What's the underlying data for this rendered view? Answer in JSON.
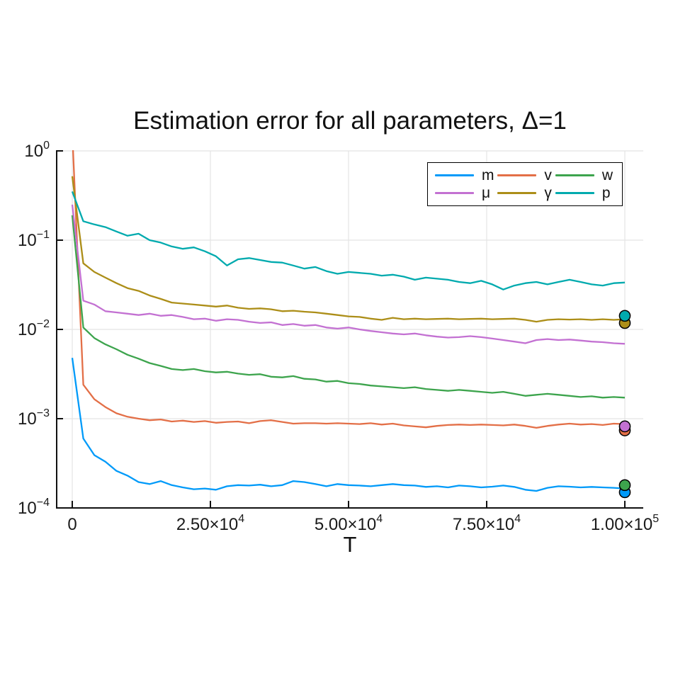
{
  "figure": {
    "background": "#ffffff",
    "grid_color": "#e4e4e4",
    "axis_color": "#111111",
    "tick_label_color": "#1a1a1a"
  },
  "chart_data": {
    "type": "line",
    "title": "Estimation error for all parameters, Δ=1",
    "xlabel": "T",
    "ylabel": "",
    "grid": true,
    "legend_position": "top-right",
    "x_axis": {
      "min": 0,
      "max": 100000,
      "ticks": [
        {
          "value": 0,
          "label": "0"
        },
        {
          "value": 25000,
          "mantissa": "2.50",
          "exp": "4"
        },
        {
          "value": 50000,
          "mantissa": "5.00",
          "exp": "4"
        },
        {
          "value": 75000,
          "mantissa": "7.50",
          "exp": "4"
        },
        {
          "value": 100000,
          "mantissa": "1.00",
          "exp": "5"
        }
      ]
    },
    "y_axis": {
      "scale": "log",
      "min": 0.0001,
      "max": 1,
      "ticks": [
        {
          "value": 1,
          "exp": "0"
        },
        {
          "value": 0.1,
          "exp": "−1"
        },
        {
          "value": 0.01,
          "exp": "−2"
        },
        {
          "value": 0.001,
          "exp": "−3"
        },
        {
          "value": 0.0001,
          "exp": "−4"
        }
      ]
    },
    "legend_columns": [
      [
        "m",
        "μ"
      ],
      [
        "v",
        "γ"
      ],
      [
        "w",
        "p"
      ]
    ],
    "x_step": 2000,
    "x": [
      0,
      2000,
      4000,
      6000,
      8000,
      10000,
      12000,
      14000,
      16000,
      18000,
      20000,
      22000,
      24000,
      26000,
      28000,
      30000,
      32000,
      34000,
      36000,
      38000,
      40000,
      42000,
      44000,
      46000,
      48000,
      50000,
      52000,
      54000,
      56000,
      58000,
      60000,
      62000,
      64000,
      66000,
      68000,
      70000,
      72000,
      74000,
      76000,
      78000,
      80000,
      82000,
      84000,
      86000,
      88000,
      90000,
      92000,
      94000,
      96000,
      98000,
      100000
    ],
    "series": [
      {
        "name": "m",
        "color": "#009AF9",
        "values": [
          0.0048,
          0.0006,
          0.00039,
          0.00033,
          0.00026,
          0.00023,
          0.000195,
          0.000185,
          0.0002,
          0.00018,
          0.00017,
          0.000162,
          0.000165,
          0.00016,
          0.000175,
          0.00018,
          0.000178,
          0.000182,
          0.000175,
          0.00018,
          0.0002,
          0.000195,
          0.000185,
          0.000175,
          0.000185,
          0.00018,
          0.000178,
          0.000175,
          0.00018,
          0.000185,
          0.00018,
          0.000178,
          0.000172,
          0.000175,
          0.00017,
          0.000178,
          0.000175,
          0.00017,
          0.000173,
          0.000178,
          0.000172,
          0.00016,
          0.000155,
          0.000168,
          0.000175,
          0.000173,
          0.00017,
          0.000172,
          0.00017,
          0.000168,
          0.000165
        ]
      },
      {
        "name": "v",
        "color": "#E36F47",
        "values": [
          1.6,
          0.0024,
          0.00165,
          0.00135,
          0.00115,
          0.00105,
          0.001,
          0.00096,
          0.00098,
          0.00093,
          0.00095,
          0.00092,
          0.00094,
          0.0009,
          0.00092,
          0.00093,
          0.00089,
          0.00094,
          0.00096,
          0.00092,
          0.00088,
          0.00089,
          0.00089,
          0.00088,
          0.00089,
          0.00088,
          0.00087,
          0.00089,
          0.00086,
          0.00088,
          0.00084,
          0.00082,
          0.0008,
          0.00083,
          0.00085,
          0.00086,
          0.00085,
          0.00086,
          0.00085,
          0.00084,
          0.00086,
          0.00083,
          0.00079,
          0.00083,
          0.00086,
          0.00088,
          0.00086,
          0.00087,
          0.00085,
          0.00088,
          0.00087
        ]
      },
      {
        "name": "w",
        "color": "#3DA44D",
        "values": [
          0.19,
          0.0105,
          0.008,
          0.0068,
          0.006,
          0.0052,
          0.0047,
          0.0042,
          0.0039,
          0.0036,
          0.0035,
          0.0036,
          0.0034,
          0.0033,
          0.00335,
          0.0032,
          0.0031,
          0.00315,
          0.00295,
          0.0029,
          0.003,
          0.0028,
          0.00275,
          0.0026,
          0.00265,
          0.0025,
          0.00245,
          0.00235,
          0.0023,
          0.00225,
          0.0022,
          0.00225,
          0.00215,
          0.0021,
          0.00205,
          0.0021,
          0.00205,
          0.002,
          0.00195,
          0.002,
          0.0019,
          0.0018,
          0.00185,
          0.0019,
          0.00185,
          0.0018,
          0.00175,
          0.00178,
          0.00172,
          0.00175,
          0.00172
        ]
      },
      {
        "name": "μ",
        "color": "#C371D2",
        "values": [
          0.25,
          0.021,
          0.019,
          0.016,
          0.0155,
          0.015,
          0.0145,
          0.015,
          0.0142,
          0.0145,
          0.0138,
          0.013,
          0.0132,
          0.0125,
          0.013,
          0.0128,
          0.0122,
          0.0118,
          0.012,
          0.0112,
          0.0115,
          0.011,
          0.0112,
          0.0105,
          0.0102,
          0.0105,
          0.01,
          0.0096,
          0.0093,
          0.009,
          0.0088,
          0.009,
          0.0086,
          0.0083,
          0.0081,
          0.0082,
          0.0084,
          0.0082,
          0.0079,
          0.0076,
          0.0073,
          0.007,
          0.0076,
          0.0078,
          0.0076,
          0.0077,
          0.0075,
          0.0073,
          0.0072,
          0.007,
          0.0069
        ]
      },
      {
        "name": "γ",
        "color": "#AC8E18",
        "values": [
          0.52,
          0.055,
          0.044,
          0.038,
          0.033,
          0.029,
          0.027,
          0.024,
          0.022,
          0.02,
          0.0195,
          0.019,
          0.0185,
          0.018,
          0.0185,
          0.0175,
          0.017,
          0.0172,
          0.0168,
          0.016,
          0.0162,
          0.0158,
          0.0155,
          0.015,
          0.0145,
          0.014,
          0.0138,
          0.0132,
          0.0128,
          0.0135,
          0.013,
          0.0132,
          0.013,
          0.0131,
          0.0132,
          0.013,
          0.0131,
          0.0132,
          0.013,
          0.0131,
          0.0132,
          0.0128,
          0.0122,
          0.0128,
          0.013,
          0.0129,
          0.013,
          0.0128,
          0.013,
          0.0128,
          0.013
        ]
      },
      {
        "name": "p",
        "color": "#00AAAE",
        "values": [
          0.35,
          0.163,
          0.15,
          0.14,
          0.125,
          0.112,
          0.118,
          0.1,
          0.094,
          0.085,
          0.08,
          0.083,
          0.075,
          0.066,
          0.052,
          0.061,
          0.063,
          0.06,
          0.057,
          0.056,
          0.052,
          0.048,
          0.05,
          0.045,
          0.042,
          0.044,
          0.043,
          0.042,
          0.04,
          0.041,
          0.039,
          0.036,
          0.038,
          0.037,
          0.036,
          0.034,
          0.033,
          0.035,
          0.032,
          0.028,
          0.031,
          0.033,
          0.034,
          0.032,
          0.034,
          0.036,
          0.034,
          0.032,
          0.031,
          0.033,
          0.0335
        ]
      }
    ],
    "end_markers": [
      {
        "series": "m",
        "x": 100000,
        "value": 0.00015,
        "color": "#009AF9"
      },
      {
        "series": "v",
        "x": 100000,
        "value": 0.00074,
        "color": "#E36F47"
      },
      {
        "series": "w",
        "x": 100000,
        "value": 0.00018,
        "color": "#3DA44D"
      },
      {
        "series": "μ",
        "x": 100000,
        "value": 0.00082,
        "color": "#C371D2"
      },
      {
        "series": "γ",
        "x": 100000,
        "value": 0.0118,
        "color": "#AC8E18"
      },
      {
        "series": "p",
        "x": 100000,
        "value": 0.0142,
        "color": "#00AAAE"
      }
    ]
  }
}
